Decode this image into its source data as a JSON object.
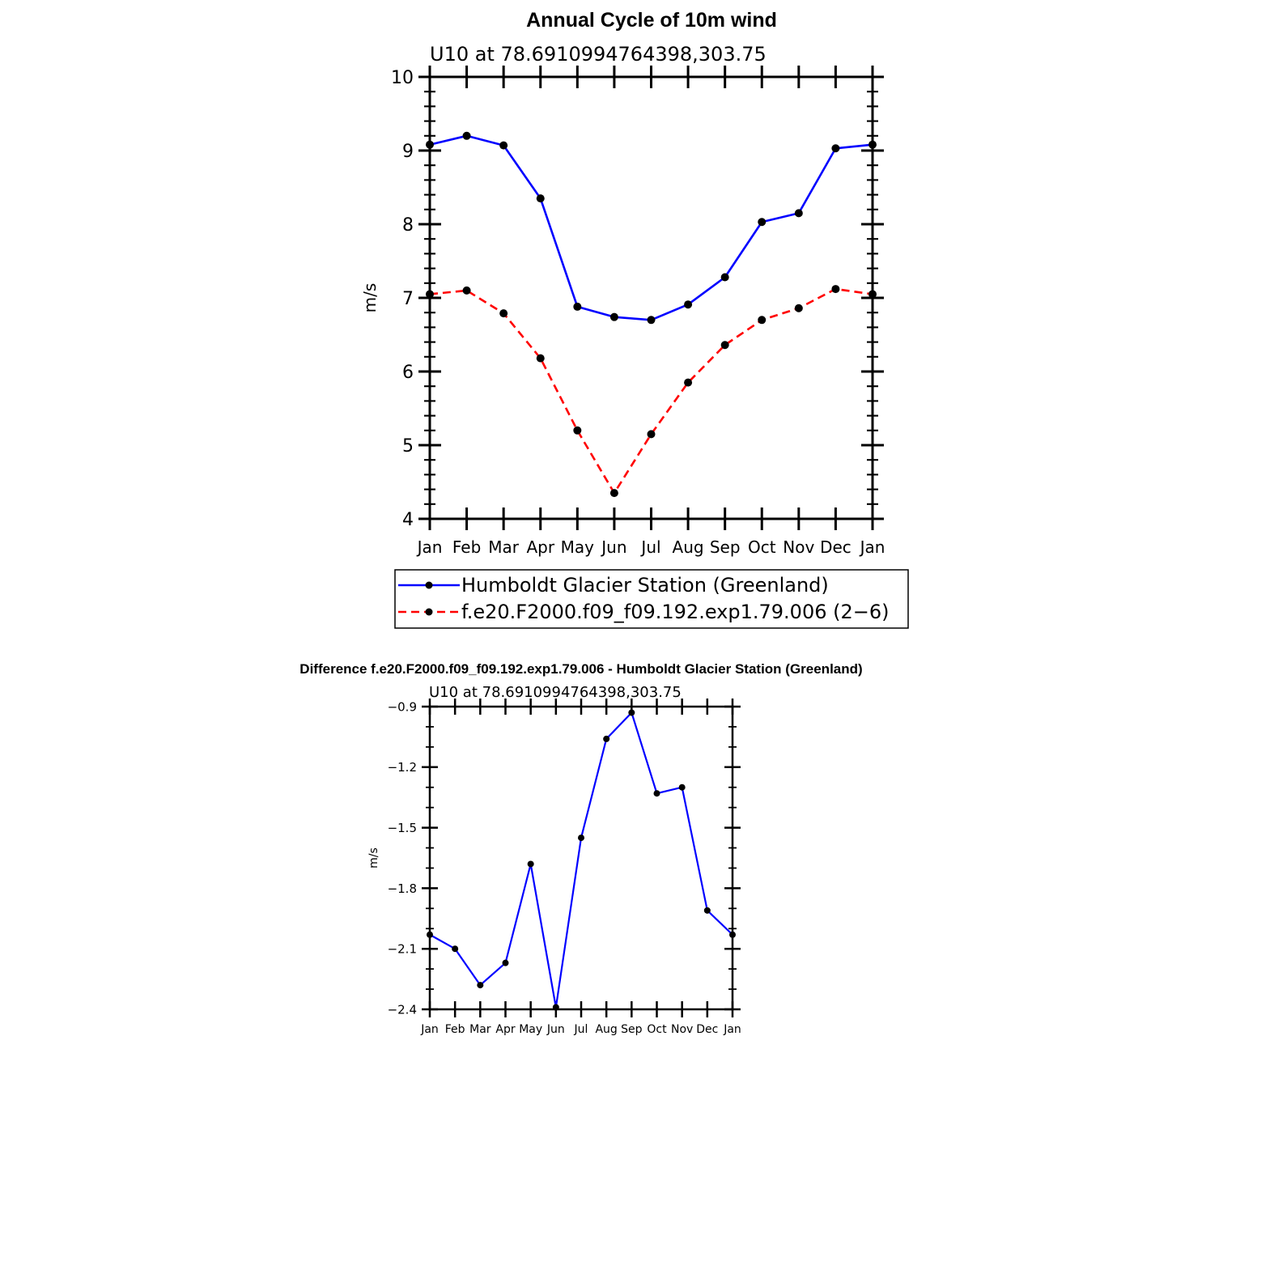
{
  "chart_data": [
    {
      "type": "line",
      "title": "Annual Cycle of 10m wind",
      "subtitle": "U10  at  78.6910994764398,303.75",
      "xlabel": "",
      "ylabel": "m/s",
      "categories": [
        "Jan",
        "Feb",
        "Mar",
        "Apr",
        "May",
        "Jun",
        "Jul",
        "Aug",
        "Sep",
        "Oct",
        "Nov",
        "Dec",
        "Jan"
      ],
      "ylim": [
        4,
        10
      ],
      "yticks": [
        "4",
        "5",
        "6",
        "7",
        "8",
        "9",
        "10"
      ],
      "legend_position": "bottom",
      "series": [
        {
          "name": "Humboldt Glacier Station (Greenland)",
          "color": "#0000ff",
          "dash": "solid",
          "values": [
            9.08,
            9.2,
            9.07,
            8.35,
            6.88,
            6.74,
            6.7,
            6.91,
            7.28,
            8.03,
            8.15,
            9.03,
            9.08
          ]
        },
        {
          "name": "f.e20.F2000.f09_f09.192.exp1.79.006 (2−6)",
          "color": "#ff0000",
          "dash": "dashed",
          "values": [
            7.05,
            7.1,
            6.79,
            6.18,
            5.2,
            4.35,
            5.15,
            5.85,
            6.36,
            6.7,
            6.86,
            7.12,
            7.05
          ]
        }
      ]
    },
    {
      "type": "line",
      "title": "Difference f.e20.F2000.f09_f09.192.exp1.79.006 - Humboldt Glacier Station (Greenland)",
      "subtitle": "U10  at  78.6910994764398,303.75",
      "xlabel": "",
      "ylabel": "m/s",
      "categories": [
        "Jan",
        "Feb",
        "Mar",
        "Apr",
        "May",
        "Jun",
        "Jul",
        "Aug",
        "Sep",
        "Oct",
        "Nov",
        "Dec",
        "Jan"
      ],
      "ylim": [
        -2.4,
        -0.9
      ],
      "yticks": [
        "−0.9",
        "−1.2",
        "−1.5",
        "−1.8",
        "−2.1",
        "−2.4"
      ],
      "series": [
        {
          "name": "Difference",
          "color": "#0000ff",
          "dash": "solid",
          "values": [
            -2.03,
            -2.1,
            -2.28,
            -2.17,
            -1.68,
            -2.39,
            -1.55,
            -1.06,
            -0.93,
            -1.33,
            -1.3,
            -1.91,
            -2.03
          ]
        }
      ]
    }
  ]
}
